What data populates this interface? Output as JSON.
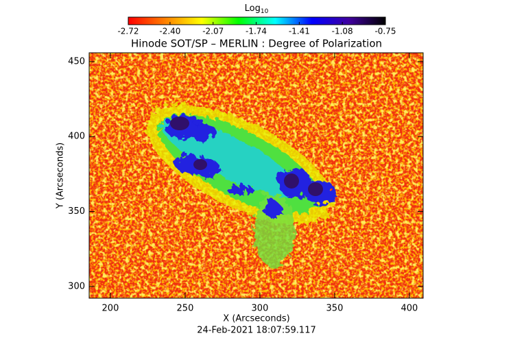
{
  "chart_data": {
    "type": "image",
    "title": "Hinode SOT/SP – MERLIN : Degree of Polarization",
    "x_label": "X (Arcseconds)",
    "y_label": "Y (Arcseconds)",
    "subtitle": "24-Feb-2021 18:07:59.117",
    "xlim": [
      185.8,
      409.2
    ],
    "xticks": [
      200,
      250,
      300,
      350,
      400
    ],
    "ylim": [
      292.2,
      455.9
    ],
    "yticks": [
      300,
      350,
      400,
      450
    ],
    "colorbar": {
      "label": "Log",
      "label_subscript": "10",
      "clim": [
        -2.72,
        -0.75
      ],
      "ticks": [
        -2.72,
        {
          "value": -2.4,
          "label": "-2.40"
        },
        -2.07,
        -1.74,
        -1.41,
        -1.08,
        -0.75
      ],
      "colormap": [
        "#ff0000",
        "#ff8000",
        "#ffff00",
        "#00ff00",
        "#00ffff",
        "#0000ff",
        "#4000a0",
        "#000000"
      ]
    }
  }
}
